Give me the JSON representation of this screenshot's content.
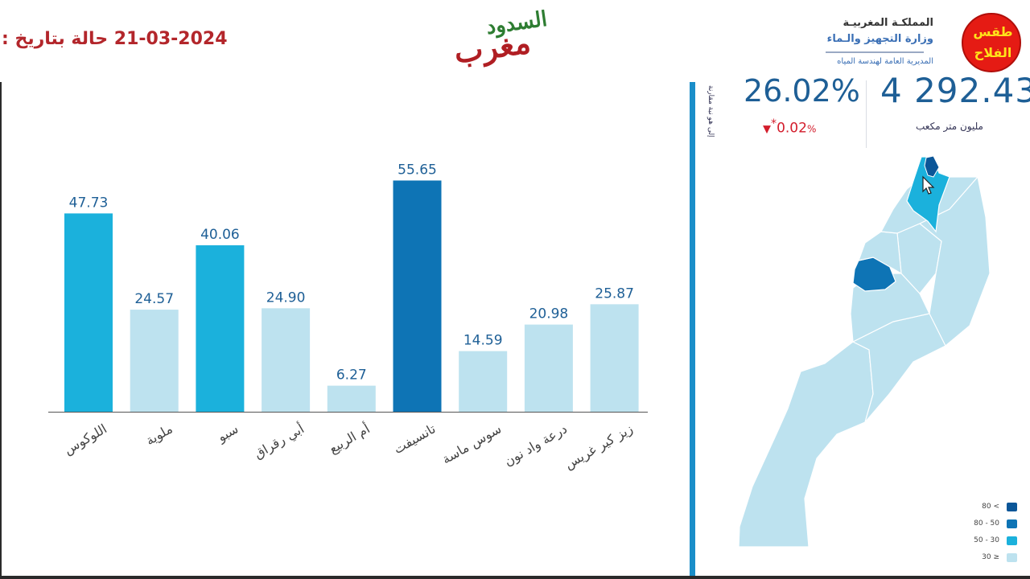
{
  "header": {
    "date_label": "حالة بتاريخ :",
    "date_value": "21-03-2024",
    "logo_word_main": "مغرب",
    "logo_word_sub": "السدود",
    "ministry_line1": "المملكـة المغربيـة",
    "ministry_line2": "وزارة التجهيز والـماء",
    "ministry_line3": "المديرية العامة لهندسة المياه",
    "badge_line1": "طقس",
    "badge_line2": "الفلاح"
  },
  "stats": {
    "total_value": "4 292.43",
    "total_unit": "مليون متر مكعب",
    "fill_rate": "26.02%",
    "change_value": "0.02",
    "change_unit": "%",
    "change_marker": "*",
    "vertical_note": "إلى هو نبة مقارنة"
  },
  "colors": {
    "dark": "#0e74b5",
    "mid": "#1bb1dc",
    "light": "#bde2ef",
    "darkest": "#0b5698",
    "accent_red": "#b3262b",
    "divider_blue": "#1a8ec9"
  },
  "legend": {
    "items": [
      {
        "label": "80 <",
        "color": "#0b5698"
      },
      {
        "label": "80 - 50",
        "color": "#0e74b5"
      },
      {
        "label": "50 - 30",
        "color": "#1bb1dc"
      },
      {
        "label": "30 ≥",
        "color": "#bde2ef"
      }
    ]
  },
  "chart_data": {
    "type": "bar",
    "categories": [
      "اللوكوس",
      "ملوية",
      "سبو",
      "أبي رقراق",
      "أم الربيع",
      "تانسيفت",
      "سوس ماسة",
      "درعة واد نون",
      "زيز كير غريس"
    ],
    "values": [
      47.73,
      24.57,
      40.06,
      24.9,
      6.27,
      55.65,
      14.59,
      20.98,
      25.87
    ],
    "labels": [
      "47.73",
      "24.57",
      "40.06",
      "24.90",
      "6.27",
      "55.65",
      "14.59",
      "20.98",
      "25.87"
    ],
    "ylim": [
      0,
      60
    ],
    "grid": false
  }
}
